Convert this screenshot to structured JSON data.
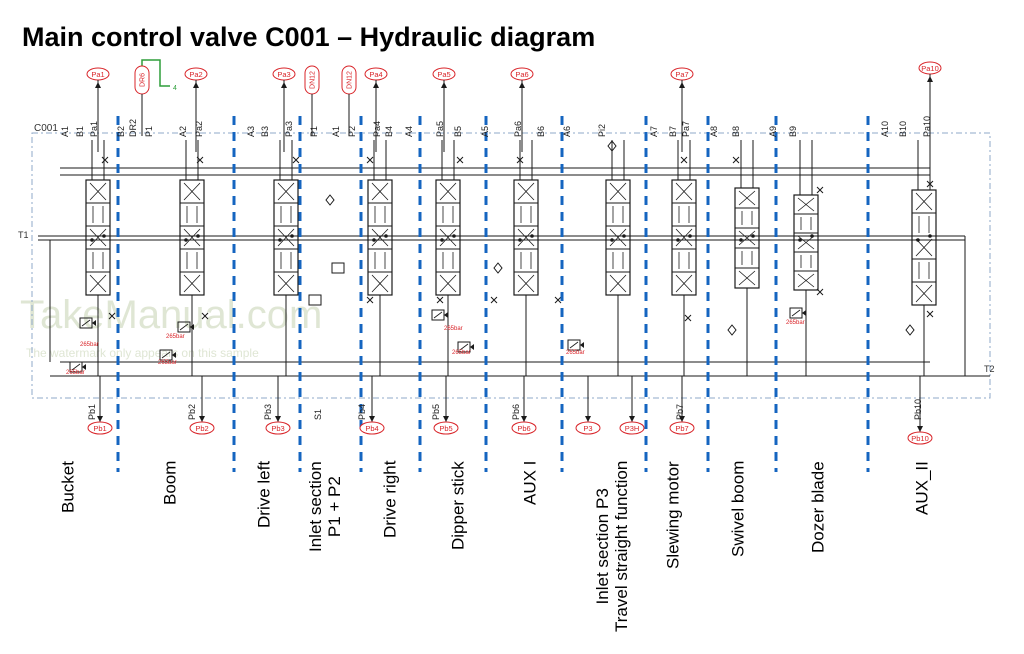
{
  "title": "Main control valve C001 – Hydraulic diagram",
  "block_label": "C001",
  "tank_ports": {
    "t1": "T1",
    "t2": "T2"
  },
  "drain_tag": {
    "label": "DR6",
    "num": "4"
  },
  "watermark": {
    "main": "TakeManual.com",
    "sub": "The watermark only appears on this sample"
  },
  "pressure_labels": [
    "265bar",
    "265bar",
    "265bar",
    "265bar",
    "265bar",
    "265bar",
    "265bar",
    "265bar"
  ],
  "top_tags": [
    "Pa1",
    "DR6",
    "Pa2",
    "Pa3",
    "DN12",
    "DN12",
    "Pa4",
    "Pa5",
    "Pa6",
    "Pa7",
    "Pa10"
  ],
  "bottom_tags": [
    "Pb1",
    "Pb2",
    "Pb3",
    "Pb4",
    "Pb5",
    "Pb6",
    "P3",
    "P3H",
    "Pb7",
    "Pb10"
  ],
  "port_labels_top": [
    "A1",
    "B1",
    "Pa1",
    "B2",
    "DR2",
    "P1",
    "A2",
    "Pa2",
    "A3",
    "B3",
    "Pa3",
    "P1",
    "A1",
    "P2",
    "Pa4",
    "B4",
    "A4",
    "Pa5",
    "B5",
    "A5",
    "Pa6",
    "B6",
    "A6",
    "Pi2",
    "A7",
    "B7",
    "Pa7",
    "A8",
    "B8",
    "A9",
    "B9",
    "A10",
    "B10",
    "Pa10"
  ],
  "port_labels_bottom": [
    "Pb1",
    "Pb2",
    "Pb3",
    "S1",
    "Pb4",
    "Pb5",
    "Pb6",
    "Pb7",
    "Pb10"
  ],
  "sections": [
    {
      "lines": [
        "Bucket"
      ]
    },
    {
      "lines": [
        "Boom"
      ]
    },
    {
      "lines": [
        "Drive left"
      ]
    },
    {
      "lines": [
        "Inlet section",
        "P1 + P2"
      ]
    },
    {
      "lines": [
        "Drive right"
      ]
    },
    {
      "lines": [
        "Dipper stick"
      ]
    },
    {
      "lines": [
        "AUX I"
      ]
    },
    {
      "lines": [
        "Inlet section P3",
        "Travel straight function"
      ]
    },
    {
      "lines": [
        "Slewing motor"
      ]
    },
    {
      "lines": [
        "Swivel boom"
      ]
    },
    {
      "lines": [
        "Dozer blade"
      ]
    },
    {
      "lines": [
        "AUX_II"
      ]
    }
  ],
  "colors": {
    "tag_red": "#d9252a",
    "divider_blue": "#1565c0",
    "frame_blue": "#8fa8c8",
    "green": "#2e9e3a",
    "ink": "#1a1a1a"
  }
}
